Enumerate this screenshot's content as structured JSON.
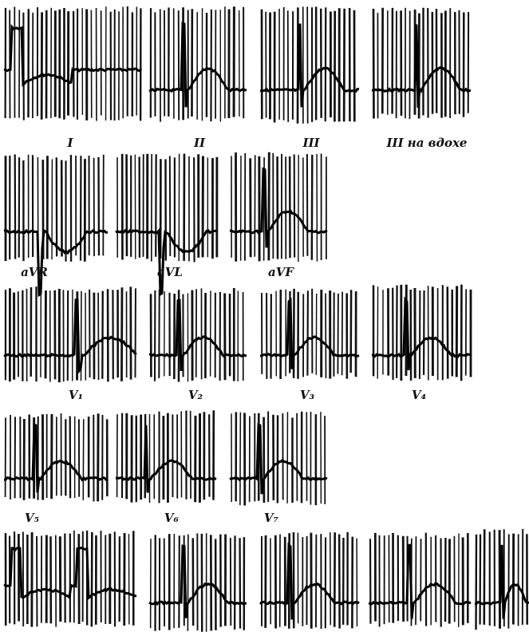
{
  "rows": [
    [
      "I",
      "II",
      "III",
      "III на вдохе"
    ],
    [
      "aVR",
      "aVL",
      "aVF"
    ],
    [
      "V₁",
      "V₂",
      "V₃",
      "V₄"
    ],
    [
      "V₅",
      "V₆",
      "V₇"
    ]
  ]
}
